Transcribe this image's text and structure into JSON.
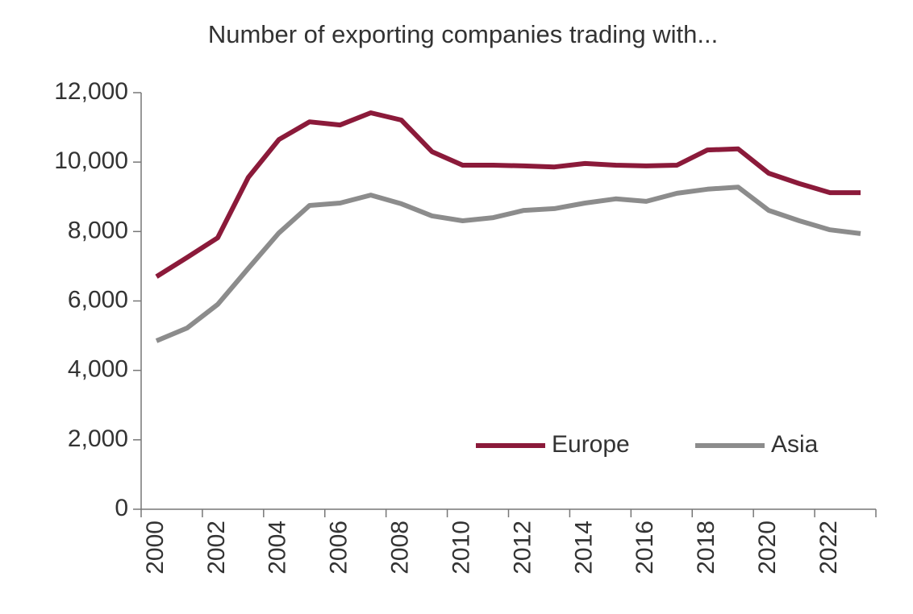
{
  "chart_data": {
    "type": "line",
    "title": "Number of exporting companies trading with...",
    "categories": [
      "2000",
      null,
      "2002",
      null,
      "2004",
      null,
      "2006",
      null,
      "2008",
      null,
      "2010",
      null,
      "2012",
      null,
      "2014",
      null,
      "2016",
      null,
      "2018",
      null,
      "2020",
      null,
      "2022",
      null
    ],
    "series": [
      {
        "name": "Europe",
        "color": "#8b1a3a",
        "values": [
          6700,
          7250,
          7820,
          9560,
          10650,
          11160,
          11070,
          11420,
          11210,
          10300,
          9910,
          9910,
          9890,
          9860,
          9960,
          9910,
          9890,
          9910,
          10350,
          10380,
          9680,
          9380,
          9120,
          9120
        ]
      },
      {
        "name": "Asia",
        "color": "#8c8c8c",
        "values": [
          4850,
          5220,
          5900,
          6940,
          7960,
          8750,
          8820,
          9050,
          8800,
          8450,
          8310,
          8400,
          8610,
          8660,
          8820,
          8940,
          8870,
          9100,
          9220,
          9280,
          8610,
          8310,
          8050,
          7940
        ]
      }
    ],
    "ylim": [
      0,
      12000
    ],
    "yticks": [
      0,
      {
        "value": 2000,
        "label": "2,000"
      },
      {
        "value": 4000,
        "label": "4,000"
      },
      {
        "value": 6000,
        "label": "6,000"
      },
      {
        "value": 8000,
        "label": "8,000"
      },
      {
        "value": 10000,
        "label": "10,000"
      },
      {
        "value": 12000,
        "label": "12,000"
      }
    ],
    "grid": false,
    "legend": "bottom-right"
  }
}
